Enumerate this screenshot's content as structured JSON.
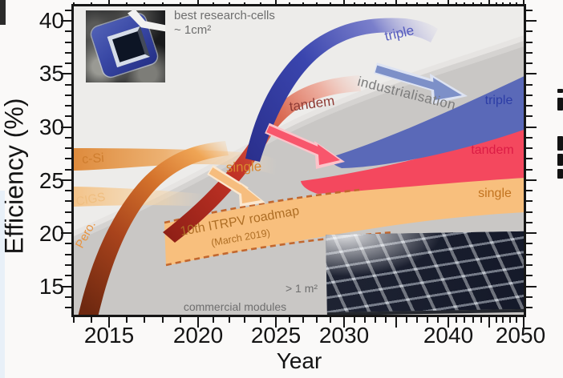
{
  "figure": {
    "xlabel": "Year",
    "ylabel": "Efficiency (%)",
    "x_tick_labels": [
      "2015",
      "2020",
      "2025",
      "2030",
      "2040",
      "2050"
    ],
    "y_tick_labels": [
      "40",
      "35",
      "30",
      "25",
      "20",
      "15"
    ],
    "annotations": {
      "best_research_line1": "best research-cells",
      "best_research_line2": "~ 1cm²",
      "commercial_line1": "> 1 m²",
      "commercial_line2": "commercial modules",
      "industrialisation": "industrialisation",
      "roadmap_line1": "10th ITRPV roadmap",
      "roadmap_line2": "(March 2019)"
    },
    "research_labels": {
      "csi": "c-Si",
      "cigs": "CIGS",
      "pero": "Pero.",
      "single": "single",
      "tandem": "tandem",
      "triple": "triple"
    },
    "module_labels": {
      "triple": "triple",
      "tandem": "tandem",
      "single": "single"
    },
    "icons": {
      "pink_arrow": "transfer-arrow-tandem",
      "orange_arrow": "transfer-arrow-single",
      "blue_arrow": "industrialisation-arrow",
      "left_photo": "perovskite-research-cell-photo",
      "right_photo": "commercial-pv-module-field-photo",
      "right_edge": "cropped-black-text-glyphs"
    },
    "colors": {
      "plot_bg": "#edecea",
      "gray_wave": "#c9c7c5",
      "blue_band": "#5a69b8",
      "red_band": "#f4485e",
      "orange_band": "#f8bf7d",
      "csi_orange": "#de8b3d",
      "pero_dark": "#a8431c",
      "blue_arc": "#3a45ae",
      "red_arc": "#c23326",
      "dash_brown": "#c2672e"
    }
  },
  "chart_data": {
    "type": "area",
    "title": "Perovskite PV efficiency roadmap (stylized)",
    "xlabel": "Year",
    "ylabel": "Efficiency (%)",
    "x_ticks": [
      2015,
      2020,
      2025,
      2030,
      2040,
      2050
    ],
    "y_ticks": [
      40,
      35,
      30,
      25,
      20,
      15
    ],
    "x_range": [
      2013,
      2050
    ],
    "y_range": [
      12,
      41.5
    ],
    "x_scale": "nonlinear, compressed toward 2050",
    "grid": false,
    "legend": "labels drawn on bands",
    "series": [
      {
        "name": "c-Si",
        "kind": "research trajectory (~1cm² cells)",
        "approx": true,
        "points": [
          [
            2013,
            26.5
          ],
          [
            2018,
            26.8
          ],
          [
            2022,
            27.2
          ]
        ]
      },
      {
        "name": "CIGS",
        "kind": "research trajectory",
        "approx": true,
        "points": [
          [
            2013,
            23.2
          ],
          [
            2020,
            23.6
          ]
        ]
      },
      {
        "name": "Pero.",
        "kind": "research trajectory",
        "approx": true,
        "points": [
          [
            2013,
            14
          ],
          [
            2015,
            18
          ],
          [
            2017,
            21
          ],
          [
            2019,
            24
          ],
          [
            2021,
            25.5
          ]
        ]
      },
      {
        "name": "single",
        "kind": "research trajectory",
        "approx": true,
        "points": [
          [
            2021,
            25.5
          ],
          [
            2024,
            26
          ]
        ]
      },
      {
        "name": "tandem",
        "kind": "research trajectory",
        "approx": true,
        "points": [
          [
            2018,
            20.5
          ],
          [
            2021,
            28
          ],
          [
            2024,
            31.5
          ],
          [
            2029,
            33.5
          ]
        ]
      },
      {
        "name": "triple",
        "kind": "research trajectory",
        "approx": true,
        "points": [
          [
            2023,
            27.5
          ],
          [
            2027,
            35
          ],
          [
            2031,
            39.5
          ],
          [
            2034,
            40.5
          ]
        ]
      },
      {
        "name": "single module",
        "kind": "module band (>1 m²)",
        "approx": true,
        "band": [
          [
            2018,
            17.0,
            21.0
          ],
          [
            2030,
            20.5,
            23.5
          ],
          [
            2050,
            22.1,
            25.2
          ]
        ]
      },
      {
        "name": "tandem module",
        "kind": "module band (>1 m²)",
        "approx": true,
        "band": [
          [
            2028,
            24.0,
            25.5
          ],
          [
            2040,
            24.8,
            28.0
          ],
          [
            2050,
            25.2,
            29.9
          ]
        ]
      },
      {
        "name": "triple module",
        "kind": "module band (>1 m²)",
        "approx": true,
        "band": [
          [
            2030,
            27.0,
            28.5
          ],
          [
            2040,
            28.5,
            32.0
          ],
          [
            2050,
            29.9,
            34.9
          ]
        ]
      },
      {
        "name": "commercial modules corridor",
        "kind": "gray wave upper edge",
        "approx": true,
        "points": [
          [
            2013,
            19.3
          ],
          [
            2020,
            24.5
          ],
          [
            2030,
            30.0
          ],
          [
            2040,
            34.5
          ],
          [
            2050,
            37.5
          ]
        ]
      }
    ],
    "annotations": [
      "best research-cells ~ 1cm²",
      "> 1 m² commercial modules",
      "industrialisation",
      "10th ITRPV roadmap (March 2019)"
    ]
  }
}
